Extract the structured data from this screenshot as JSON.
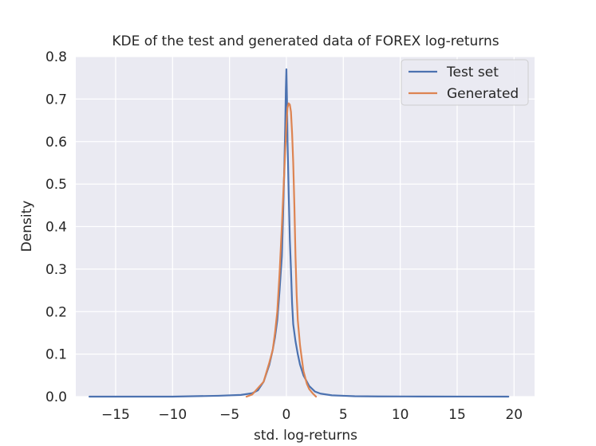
{
  "chart_data": {
    "type": "line",
    "title": "KDE of the test and generated data of FOREX log-returns",
    "xlabel": "std. log-returns",
    "ylabel": "Density",
    "xlim": [
      -18.5,
      21.8
    ],
    "ylim": [
      0,
      0.8
    ],
    "xticks": [
      -15,
      -10,
      -5,
      0,
      5,
      10,
      15,
      20
    ],
    "xtick_labels": [
      "−15",
      "−10",
      "−5",
      "0",
      "5",
      "10",
      "15",
      "20"
    ],
    "yticks": [
      0.0,
      0.1,
      0.2,
      0.3,
      0.4,
      0.5,
      0.6,
      0.7,
      0.8
    ],
    "ytick_labels": [
      "0.0",
      "0.1",
      "0.2",
      "0.3",
      "0.4",
      "0.5",
      "0.6",
      "0.7",
      "0.8"
    ],
    "grid": true,
    "legend_position": "top-right",
    "series": [
      {
        "name": "Test set",
        "color": "#4c72b0",
        "x": [
          -17.3,
          -10,
          -6,
          -4,
          -3,
          -2.5,
          -2,
          -1.5,
          -1.2,
          -1,
          -0.8,
          -0.6,
          -0.4,
          -0.3,
          -0.2,
          -0.1,
          -0.05,
          0,
          0.05,
          0.1,
          0.2,
          0.3,
          0.4,
          0.5,
          0.6,
          0.8,
          1,
          1.2,
          1.5,
          2,
          2.5,
          3,
          4,
          5,
          6,
          8,
          12,
          16,
          19.5
        ],
        "y": [
          0,
          0,
          0.002,
          0.004,
          0.008,
          0.015,
          0.035,
          0.075,
          0.11,
          0.14,
          0.18,
          0.25,
          0.33,
          0.42,
          0.52,
          0.64,
          0.72,
          0.77,
          0.7,
          0.6,
          0.48,
          0.37,
          0.3,
          0.22,
          0.17,
          0.13,
          0.1,
          0.075,
          0.05,
          0.025,
          0.012,
          0.007,
          0.003,
          0.002,
          0.001,
          0.0005,
          0.0002,
          0.0001,
          0
        ]
      },
      {
        "name": "Generated",
        "color": "#dd8452",
        "x": [
          -3.5,
          -3,
          -2.5,
          -2,
          -1.5,
          -1.2,
          -1,
          -0.8,
          -0.6,
          -0.4,
          -0.2,
          0,
          0.1,
          0.2,
          0.3,
          0.4,
          0.5,
          0.6,
          0.7,
          0.8,
          0.9,
          1,
          1.2,
          1.5,
          1.8,
          2,
          2.3,
          2.6
        ],
        "y": [
          0,
          0.005,
          0.02,
          0.035,
          0.08,
          0.11,
          0.15,
          0.2,
          0.29,
          0.4,
          0.52,
          0.64,
          0.68,
          0.69,
          0.687,
          0.67,
          0.62,
          0.55,
          0.45,
          0.33,
          0.24,
          0.18,
          0.12,
          0.06,
          0.03,
          0.018,
          0.008,
          0
        ]
      }
    ]
  }
}
